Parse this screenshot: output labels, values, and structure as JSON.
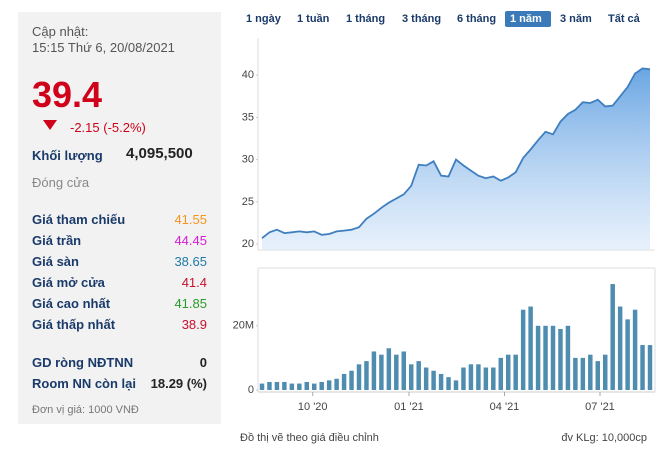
{
  "panel": {
    "update_label": "Cập nhật:",
    "update_time": "15:15 Thứ 6, 20/08/2021",
    "price": 39.4,
    "change": "-2.15 (-5.2%)",
    "volume_label": "Khối lượng",
    "volume": "4,095,500",
    "status": "Đóng cửa",
    "rows": [
      {
        "label": "Giá tham chiếu",
        "value": "41.55",
        "color": "#f7941d"
      },
      {
        "label": "Giá trần",
        "value": "44.45",
        "color": "#d41ed4"
      },
      {
        "label": "Giá sàn",
        "value": "38.65",
        "color": "#1f7aa8"
      },
      {
        "label": "Giá mở cửa",
        "value": "41.4",
        "color": "#c8102e"
      },
      {
        "label": "Giá cao nhất",
        "value": "41.85",
        "color": "#2a9a2a"
      },
      {
        "label": "Giá thấp nhất",
        "value": "38.9",
        "color": "#c8102e"
      }
    ],
    "foreign": [
      {
        "label": "GD ròng NĐTNN",
        "value": "0"
      },
      {
        "label": "Room NN còn lại",
        "value": "18.29 (%)"
      }
    ],
    "unit": "Đơn vị giá: 1000 VNĐ"
  },
  "tabs": {
    "items": [
      "1 ngày",
      "1 tuần",
      "1 tháng",
      "3 tháng",
      "6 tháng",
      "1 năm",
      "3 năm",
      "Tất cả"
    ],
    "active": 5
  },
  "chart_data": [
    {
      "type": "area",
      "color": "#3f7fc0",
      "values": [
        20.7,
        21.4,
        21.7,
        21.3,
        21.4,
        21.5,
        21.4,
        21.5,
        21.1,
        21.2,
        21.5,
        21.6,
        21.7,
        22.0,
        23.0,
        23.6,
        24.3,
        24.9,
        25.4,
        25.9,
        26.9,
        29.4,
        29.3,
        29.8,
        28.1,
        28.0,
        30.0,
        29.3,
        28.7,
        28.1,
        27.8,
        28.0,
        27.5,
        27.9,
        28.5,
        30.2,
        31.2,
        32.3,
        33.3,
        33.0,
        34.5,
        35.4,
        35.9,
        36.8,
        36.7,
        37.1,
        36.3,
        36.4,
        37.5,
        38.6,
        40.2,
        40.8,
        40.7
      ],
      "xlim": [
        0,
        52
      ],
      "ylim": [
        19.3,
        44.4
      ],
      "yticks": [
        20,
        25,
        30,
        35,
        40
      ]
    },
    {
      "type": "bar",
      "color": "#4f8db0",
      "values": [
        2,
        2.5,
        2.5,
        2.5,
        2,
        2,
        2.5,
        2,
        2.5,
        3,
        3.5,
        5,
        6,
        8,
        9,
        12,
        11,
        13,
        11,
        12,
        8,
        9,
        7,
        6,
        5,
        4,
        3,
        7,
        8,
        8,
        7,
        7,
        10,
        11,
        11,
        25,
        26,
        20,
        20,
        20,
        19,
        20,
        10,
        10,
        11,
        9,
        11,
        33,
        26,
        22,
        25,
        14,
        14
      ],
      "xlim": [
        0,
        52
      ],
      "ylim": [
        0,
        38
      ],
      "yticks": [
        0,
        {
          "value": 20,
          "label": "20M"
        }
      ],
      "xticks": [
        {
          "value": 6.8,
          "label": "10 '20"
        },
        {
          "value": 19.7,
          "label": "01 '21"
        },
        {
          "value": 32.5,
          "label": "04 '21"
        },
        {
          "value": 45.3,
          "label": "07 '21"
        }
      ]
    }
  ],
  "footer": {
    "note": "Đồ thị vẽ theo giá điều chỉnh",
    "volume_unit": "đv KLg: 10,000cp"
  }
}
